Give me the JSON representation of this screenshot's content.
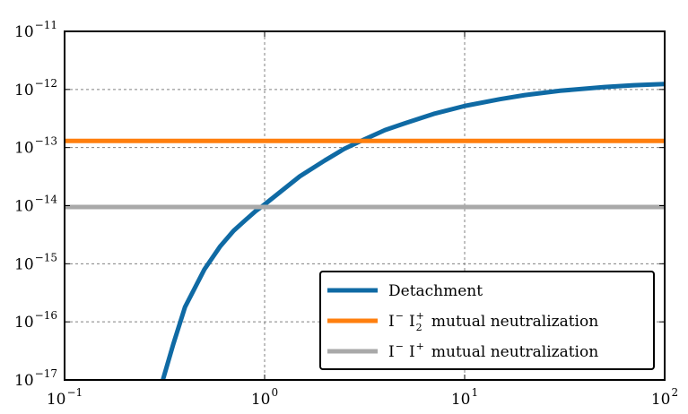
{
  "chart_data": {
    "type": "line",
    "xscale": "log",
    "yscale": "log",
    "xlim": [
      0.1,
      100
    ],
    "ylim": [
      1e-17,
      1e-11
    ],
    "grid": true,
    "legend_position": "bottom-right",
    "x_ticks": [
      {
        "value": 0.1,
        "base": "10",
        "exp": "−1"
      },
      {
        "value": 1,
        "base": "10",
        "exp": "0"
      },
      {
        "value": 10,
        "base": "10",
        "exp": "1"
      },
      {
        "value": 100,
        "base": "10",
        "exp": "2"
      }
    ],
    "y_ticks": [
      {
        "value": 1e-11,
        "base": "10",
        "exp": "−11"
      },
      {
        "value": 1e-12,
        "base": "10",
        "exp": "−12"
      },
      {
        "value": 1e-13,
        "base": "10",
        "exp": "−13"
      },
      {
        "value": 1e-14,
        "base": "10",
        "exp": "−14"
      },
      {
        "value": 1e-15,
        "base": "10",
        "exp": "−15"
      },
      {
        "value": 1e-16,
        "base": "10",
        "exp": "−16"
      },
      {
        "value": 1e-17,
        "base": "10",
        "exp": "−17"
      }
    ],
    "series": [
      {
        "name": "Detachment",
        "color": "#0f6aa4",
        "x": [
          0.31,
          0.35,
          0.4,
          0.5,
          0.6,
          0.7,
          0.8,
          0.9,
          1,
          1.5,
          2,
          2.5,
          3,
          4,
          5,
          7,
          10,
          15,
          20,
          30,
          50,
          70,
          100
        ],
        "y": [
          1e-17,
          4.2e-17,
          1.8e-16,
          8e-16,
          2e-15,
          3.7e-15,
          5.6e-15,
          8e-15,
          1.05e-14,
          3.2e-14,
          6e-14,
          9.5e-14,
          1.28e-13,
          2e-13,
          2.6e-13,
          3.8e-13,
          5.2e-13,
          6.8e-13,
          8e-13,
          9.5e-13,
          1.1e-12,
          1.18e-12,
          1.24e-12
        ]
      },
      {
        "name": "mutual neutralization",
        "legend_parts": {
          "a": "I",
          "a_sup": "−",
          "b": "I",
          "b_sub": "2",
          "b_sup": "+",
          "rest": "mutual neutralization"
        },
        "color": "#ff7f0e",
        "x": [
          0.1,
          100
        ],
        "y": [
          1.3e-13,
          1.3e-13
        ]
      },
      {
        "name": "mutual neutralization",
        "legend_parts": {
          "a": "I",
          "a_sup": "−",
          "b": "I",
          "b_sub": "",
          "b_sup": "+",
          "rest": "mutual neutralization"
        },
        "color": "#a9a9a9",
        "x": [
          0.1,
          100
        ],
        "y": [
          9.5e-15,
          9.5e-15
        ]
      }
    ]
  }
}
